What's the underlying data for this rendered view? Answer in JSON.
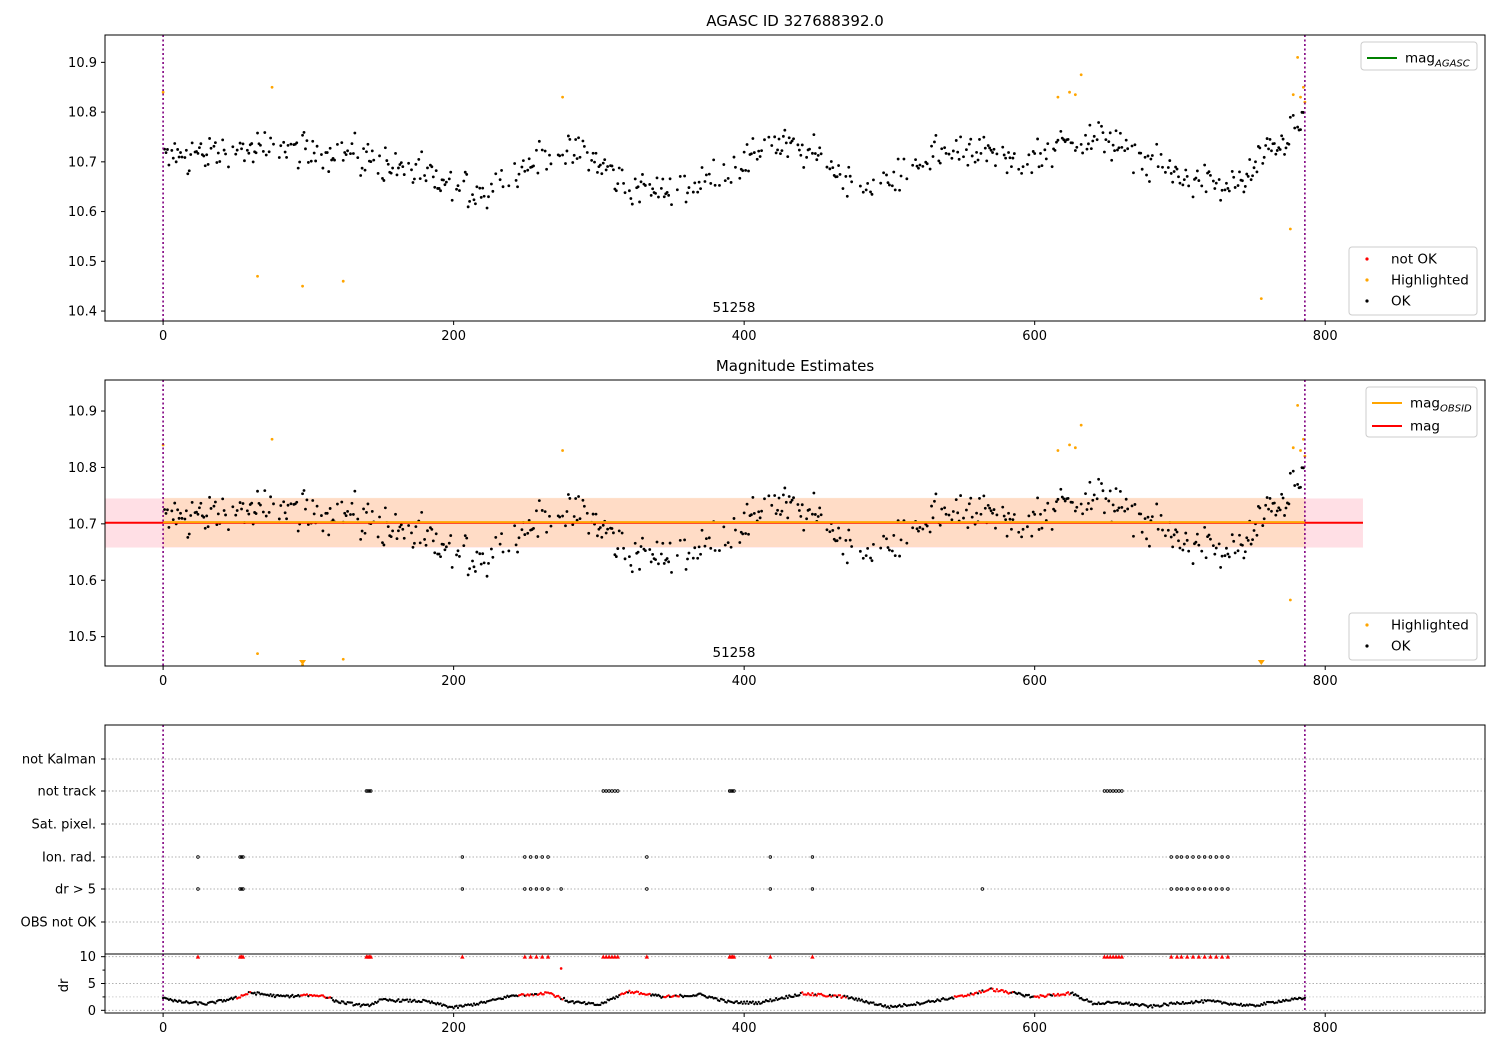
{
  "chart_data": [
    {
      "type": "scatter",
      "title": "AGASC ID 327688392.0",
      "annotation": "51258",
      "xlim": [
        -40,
        910
      ],
      "ylim": [
        10.38,
        10.955
      ],
      "xticks": [
        0,
        200,
        400,
        600,
        800
      ],
      "yticks": [
        10.4,
        10.5,
        10.6,
        10.7,
        10.8,
        10.9
      ],
      "vlines": [
        0,
        786
      ],
      "vline_color": "#800080",
      "legend_lines": [
        {
          "label": "mag",
          "subscript": "AGASC",
          "color": "#008000"
        }
      ],
      "legend_points": [
        {
          "label": "not OK",
          "color": "#ff0000"
        },
        {
          "label": "Highlighted",
          "color": "#ffa500"
        },
        {
          "label": "OK",
          "color": "#000000"
        }
      ],
      "series": [
        {
          "name": "OK",
          "color": "#000000",
          "trend": [
            [
              0,
              10.71
            ],
            [
              40,
              10.72
            ],
            [
              80,
              10.725
            ],
            [
              120,
              10.72
            ],
            [
              160,
              10.69
            ],
            [
              200,
              10.65
            ],
            [
              220,
              10.64
            ],
            [
              260,
              10.71
            ],
            [
              290,
              10.72
            ],
            [
              320,
              10.65
            ],
            [
              360,
              10.64
            ],
            [
              400,
              10.7
            ],
            [
              420,
              10.745
            ],
            [
              450,
              10.71
            ],
            [
              480,
              10.65
            ],
            [
              500,
              10.65
            ],
            [
              520,
              10.7
            ],
            [
              560,
              10.73
            ],
            [
              590,
              10.69
            ],
            [
              620,
              10.74
            ],
            [
              650,
              10.75
            ],
            [
              660,
              10.72
            ],
            [
              700,
              10.67
            ],
            [
              740,
              10.65
            ],
            [
              760,
              10.72
            ],
            [
              785,
              10.78
            ]
          ],
          "noise": 0.035
        },
        {
          "name": "Highlighted",
          "color": "#ffa500",
          "points": [
            [
              0,
              10.84
            ],
            [
              65,
              10.47
            ],
            [
              75,
              10.85
            ],
            [
              96,
              10.45
            ],
            [
              124,
              10.46
            ],
            [
              275,
              10.83
            ],
            [
              616,
              10.83
            ],
            [
              624,
              10.84
            ],
            [
              628,
              10.835
            ],
            [
              632,
              10.875
            ],
            [
              756,
              10.425
            ],
            [
              776,
              10.565
            ],
            [
              778,
              10.835
            ],
            [
              781,
              10.91
            ],
            [
              783,
              10.83
            ],
            [
              785,
              10.85
            ],
            [
              786,
              10.82
            ]
          ]
        }
      ]
    },
    {
      "type": "scatter",
      "title": "Magnitude Estimates",
      "annotation": "51258",
      "xlim": [
        -40,
        910
      ],
      "ylim": [
        10.448,
        10.955
      ],
      "xticks": [
        0,
        200,
        400,
        600,
        800
      ],
      "yticks": [
        10.5,
        10.6,
        10.7,
        10.8,
        10.9
      ],
      "vlines": [
        0,
        786
      ],
      "mag_line": {
        "value": 10.702,
        "x": [
          -40,
          826
        ],
        "color": "#ff0000",
        "band": [
          10.658,
          10.745
        ],
        "band_color": "#ffc0cb"
      },
      "obsid_line": {
        "value": 10.703,
        "x": [
          0,
          786
        ],
        "color": "#ffa500",
        "band": [
          10.659,
          10.746
        ],
        "band_color": "#ffdab9"
      },
      "legend_lines": [
        {
          "label": "mag",
          "subscript": "OBSID",
          "color": "#ffa500"
        },
        {
          "label": "mag",
          "subscript": "",
          "color": "#ff0000"
        }
      ],
      "legend_points": [
        {
          "label": "Highlighted",
          "color": "#ffa500"
        },
        {
          "label": "OK",
          "color": "#000000"
        }
      ],
      "clipped_markers": [
        96,
        756
      ]
    },
    {
      "type": "scatter",
      "categories": [
        "not Kalman",
        "not track",
        "Sat. pixel.",
        "Ion. rad.",
        "dr > 5",
        "OBS not OK"
      ],
      "xlim": [
        -40,
        910
      ],
      "xticks": [
        0,
        200,
        400,
        600,
        800
      ],
      "vlines": [
        0,
        786
      ],
      "flags": {
        "not Kalman": [],
        "not track": [
          140,
          141,
          142,
          143,
          303,
          305,
          307,
          309,
          311,
          313,
          390,
          391,
          392,
          393,
          648,
          650,
          652,
          654,
          656,
          658,
          660
        ],
        "Sat. pixel.": [],
        "Ion. rad.": [
          24,
          53,
          54,
          55,
          206,
          249,
          253,
          257,
          261,
          265,
          333,
          418,
          447,
          694,
          698,
          701,
          705,
          709,
          713,
          717,
          721,
          725,
          729,
          733
        ],
        "dr > 5": [
          24,
          53,
          54,
          55,
          206,
          249,
          253,
          257,
          261,
          265,
          274,
          333,
          418,
          447,
          564,
          694,
          698,
          701,
          705,
          709,
          713,
          717,
          721,
          725,
          729,
          733
        ],
        "OBS not OK": []
      }
    },
    {
      "type": "scatter",
      "ylabel": "dr",
      "xlim": [
        -40,
        910
      ],
      "ylim": [
        -0.5,
        10.5
      ],
      "yticks": [
        0,
        5,
        10
      ],
      "xticks": [
        0,
        200,
        400,
        600,
        800
      ],
      "vlines": [
        0,
        786
      ],
      "flag_markers_y": 10,
      "flag_x": [
        24,
        53,
        54,
        55,
        140,
        141,
        142,
        143,
        206,
        249,
        253,
        257,
        261,
        265,
        303,
        305,
        307,
        309,
        311,
        313,
        333,
        390,
        391,
        392,
        393,
        418,
        447,
        648,
        650,
        652,
        654,
        656,
        658,
        660,
        694,
        698,
        701,
        705,
        709,
        713,
        717,
        721,
        725,
        729,
        733
      ],
      "outlier": [
        274,
        7.8
      ],
      "dr_trend": [
        [
          0,
          2.5
        ],
        [
          10,
          1.6
        ],
        [
          30,
          1.2
        ],
        [
          50,
          2.3
        ],
        [
          60,
          3.3
        ],
        [
          80,
          2.6
        ],
        [
          110,
          2.8
        ],
        [
          120,
          1.6
        ],
        [
          140,
          0.8
        ],
        [
          150,
          1.9
        ],
        [
          180,
          1.7
        ],
        [
          200,
          0.5
        ],
        [
          220,
          1.4
        ],
        [
          240,
          2.7
        ],
        [
          265,
          3.3
        ],
        [
          280,
          1.6
        ],
        [
          300,
          1.0
        ],
        [
          320,
          3.5
        ],
        [
          345,
          2.5
        ],
        [
          370,
          2.9
        ],
        [
          390,
          1.5
        ],
        [
          410,
          1.4
        ],
        [
          440,
          3.1
        ],
        [
          470,
          2.5
        ],
        [
          500,
          0.6
        ],
        [
          520,
          1.3
        ],
        [
          550,
          2.6
        ],
        [
          570,
          3.9
        ],
        [
          600,
          2.5
        ],
        [
          625,
          3.2
        ],
        [
          640,
          1.3
        ],
        [
          660,
          1.4
        ],
        [
          680,
          0.7
        ],
        [
          700,
          1.4
        ],
        [
          720,
          1.7
        ],
        [
          750,
          0.8
        ],
        [
          770,
          1.8
        ],
        [
          786,
          2.2
        ]
      ],
      "red_ranges": [
        [
          50,
          60
        ],
        [
          95,
          115
        ],
        [
          245,
          275
        ],
        [
          315,
          335
        ],
        [
          345,
          355
        ],
        [
          440,
          470
        ],
        [
          545,
          585
        ],
        [
          600,
          625
        ]
      ]
    }
  ]
}
